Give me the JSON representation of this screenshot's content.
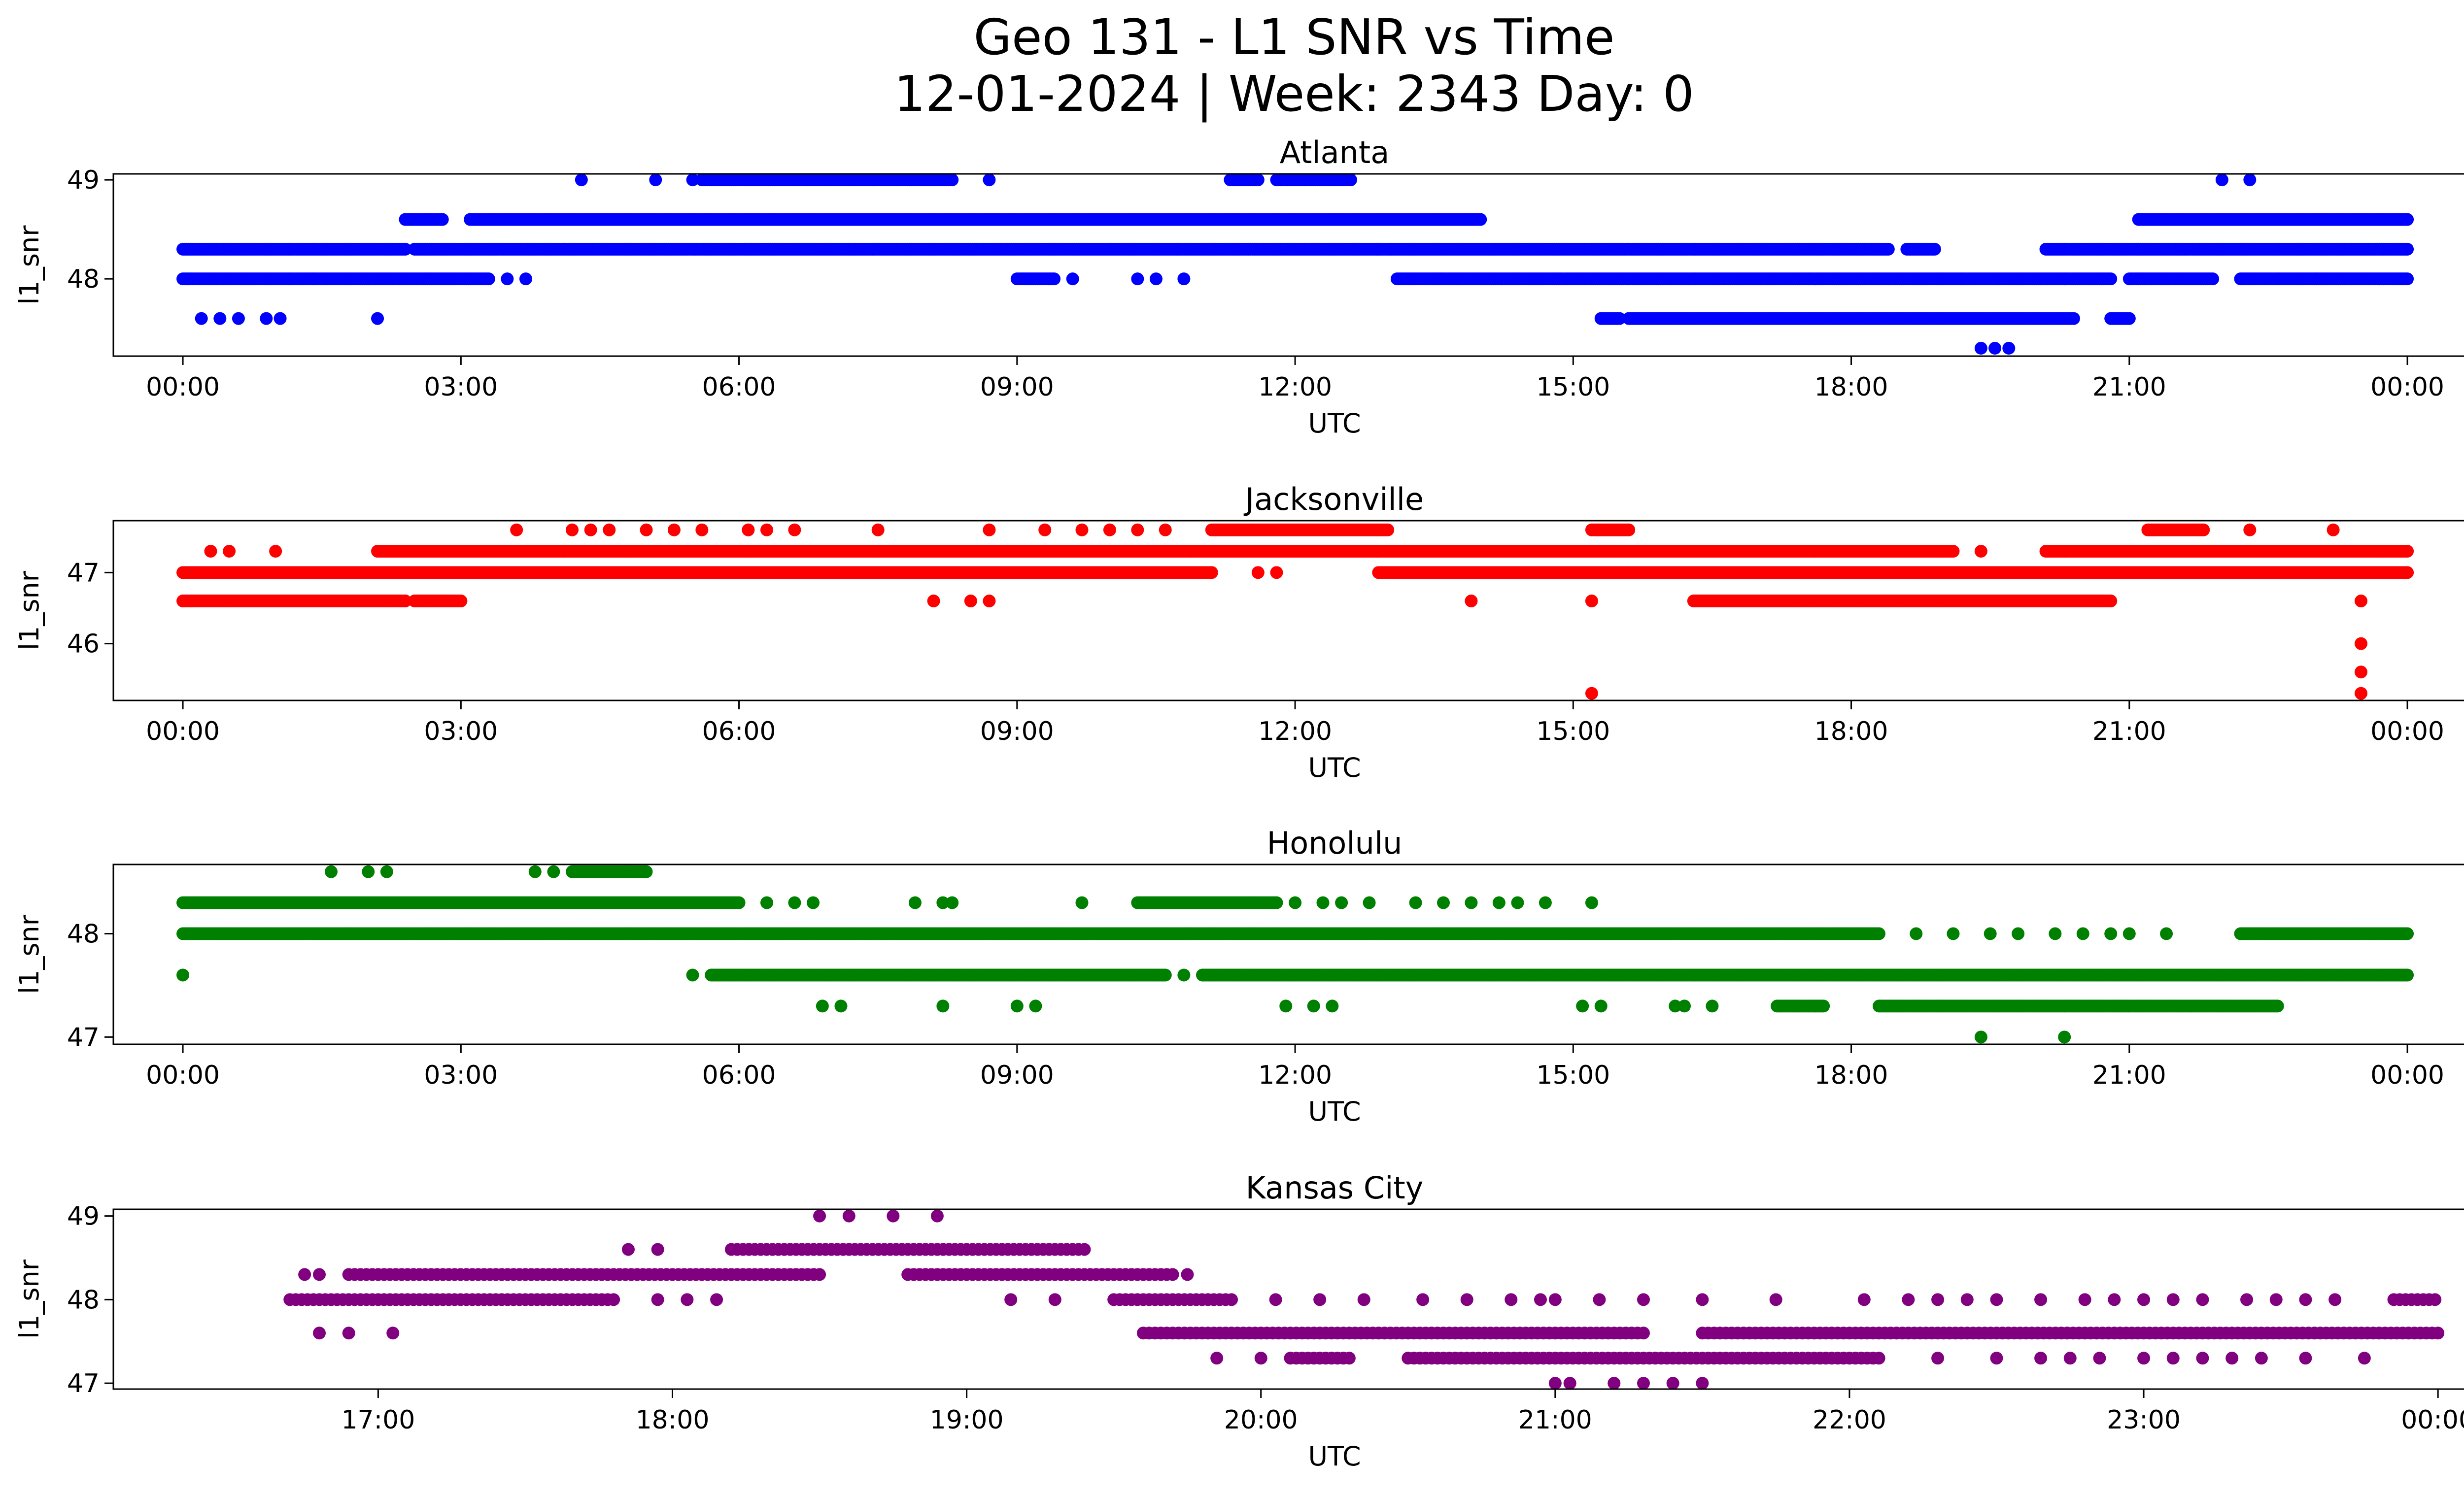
{
  "figure": {
    "title_line1": "Geo 131 - L1 SNR vs Time",
    "title_line2": "12-01-2024 | Week: 2343 Day: 0"
  },
  "chart_data": [
    {
      "type": "scatter",
      "title": "Atlanta",
      "color": "#0000ff",
      "xlabel": "UTC",
      "ylabel": "l1_snr",
      "xlim": [
        -0.75,
        25.6
      ],
      "ylim": [
        47.22,
        49.06
      ],
      "xticks": [
        0,
        3,
        6,
        9,
        12,
        15,
        18,
        21,
        24
      ],
      "xtick_labels": [
        "00:00",
        "03:00",
        "06:00",
        "09:00",
        "12:00",
        "15:00",
        "18:00",
        "21:00",
        "00:00"
      ],
      "yticks": [
        48,
        49
      ],
      "ytick_labels": [
        "48",
        "49"
      ],
      "series": [
        {
          "name": "48.3 band",
          "y": 48.3,
          "x_ranges": [
            [
              0,
              2.4
            ],
            [
              2.5,
              18.4
            ],
            [
              18.6,
              18.9
            ],
            [
              20.1,
              24
            ]
          ]
        },
        {
          "name": "48.0 band",
          "y": 48.0,
          "x_ranges": [
            [
              0,
              3.3
            ],
            [
              9.0,
              9.4
            ],
            [
              13.1,
              20.8
            ],
            [
              21.0,
              21.9
            ],
            [
              22.2,
              24
            ]
          ]
        },
        {
          "name": "48.6 band",
          "y": 48.6,
          "x_ranges": [
            [
              2.4,
              2.8
            ],
            [
              3.1,
              14.0
            ],
            [
              21.1,
              24
            ]
          ]
        },
        {
          "name": "49.0 band",
          "y": 49.0,
          "x_ranges": [
            [
              5.6,
              8.3
            ],
            [
              11.3,
              11.6
            ],
            [
              11.8,
              12.6
            ]
          ]
        },
        {
          "name": "47.6 band",
          "y": 47.6,
          "x_ranges": [
            [
              15.3,
              15.5
            ],
            [
              15.6,
              20.4
            ],
            [
              20.8,
              21.0
            ]
          ]
        }
      ],
      "scatter_points": [
        {
          "x": 0.2,
          "y": 47.6
        },
        {
          "x": 0.4,
          "y": 47.6
        },
        {
          "x": 0.6,
          "y": 47.6
        },
        {
          "x": 0.9,
          "y": 47.6
        },
        {
          "x": 1.05,
          "y": 47.6
        },
        {
          "x": 2.1,
          "y": 47.6
        },
        {
          "x": 3.5,
          "y": 48.0
        },
        {
          "x": 3.7,
          "y": 48.0
        },
        {
          "x": 4.3,
          "y": 49.0
        },
        {
          "x": 5.1,
          "y": 49.0
        },
        {
          "x": 5.5,
          "y": 49.0
        },
        {
          "x": 8.7,
          "y": 49.0
        },
        {
          "x": 9.6,
          "y": 48.0
        },
        {
          "x": 10.3,
          "y": 48.0
        },
        {
          "x": 10.5,
          "y": 48.0
        },
        {
          "x": 10.8,
          "y": 48.0
        },
        {
          "x": 19.4,
          "y": 47.3
        },
        {
          "x": 19.55,
          "y": 47.3
        },
        {
          "x": 19.7,
          "y": 47.3
        },
        {
          "x": 22.0,
          "y": 49.0
        },
        {
          "x": 22.3,
          "y": 49.0
        }
      ]
    },
    {
      "type": "scatter",
      "title": "Jacksonville",
      "color": "#ff0000",
      "xlabel": "UTC",
      "ylabel": "l1_snr",
      "xlim": [
        -0.75,
        25.6
      ],
      "ylim": [
        45.2,
        47.73
      ],
      "xticks": [
        0,
        3,
        6,
        9,
        12,
        15,
        18,
        21,
        24
      ],
      "xtick_labels": [
        "00:00",
        "03:00",
        "06:00",
        "09:00",
        "12:00",
        "15:00",
        "18:00",
        "21:00",
        "00:00"
      ],
      "yticks": [
        46,
        47
      ],
      "ytick_labels": [
        "46",
        "47"
      ],
      "series": [
        {
          "name": "47.0 band",
          "y": 47.0,
          "x_ranges": [
            [
              0,
              11.1
            ],
            [
              12.9,
              24
            ]
          ]
        },
        {
          "name": "46.6 band",
          "y": 46.6,
          "x_ranges": [
            [
              0,
              2.4
            ],
            [
              2.5,
              3.0
            ],
            [
              16.3,
              20.8
            ]
          ]
        },
        {
          "name": "47.3 band",
          "y": 47.3,
          "x_ranges": [
            [
              2.1,
              19.1
            ],
            [
              20.1,
              24
            ]
          ]
        },
        {
          "name": "47.6 band",
          "y": 47.6,
          "x_ranges": [
            [
              11.1,
              13.0
            ],
            [
              15.2,
              15.6
            ],
            [
              21.2,
              21.8
            ]
          ]
        }
      ],
      "scatter_points": [
        {
          "x": 0.3,
          "y": 47.3
        },
        {
          "x": 0.5,
          "y": 47.3
        },
        {
          "x": 1.0,
          "y": 47.3
        },
        {
          "x": 3.6,
          "y": 47.6
        },
        {
          "x": 4.2,
          "y": 47.6
        },
        {
          "x": 4.4,
          "y": 47.6
        },
        {
          "x": 4.6,
          "y": 47.6
        },
        {
          "x": 5.0,
          "y": 47.6
        },
        {
          "x": 5.3,
          "y": 47.6
        },
        {
          "x": 5.6,
          "y": 47.6
        },
        {
          "x": 6.1,
          "y": 47.6
        },
        {
          "x": 6.3,
          "y": 47.6
        },
        {
          "x": 6.6,
          "y": 47.6
        },
        {
          "x": 7.5,
          "y": 47.6
        },
        {
          "x": 8.7,
          "y": 47.6
        },
        {
          "x": 9.3,
          "y": 47.6
        },
        {
          "x": 9.7,
          "y": 47.6
        },
        {
          "x": 10.0,
          "y": 47.6
        },
        {
          "x": 10.3,
          "y": 47.6
        },
        {
          "x": 10.6,
          "y": 47.6
        },
        {
          "x": 8.1,
          "y": 46.6
        },
        {
          "x": 8.5,
          "y": 46.6
        },
        {
          "x": 8.7,
          "y": 46.6
        },
        {
          "x": 11.6,
          "y": 47.0
        },
        {
          "x": 11.8,
          "y": 47.0
        },
        {
          "x": 13.9,
          "y": 46.6
        },
        {
          "x": 15.2,
          "y": 46.6
        },
        {
          "x": 15.2,
          "y": 45.3
        },
        {
          "x": 19.4,
          "y": 47.3
        },
        {
          "x": 22.3,
          "y": 47.6
        },
        {
          "x": 23.2,
          "y": 47.6
        },
        {
          "x": 23.5,
          "y": 46.6
        },
        {
          "x": 23.5,
          "y": 46.0
        },
        {
          "x": 23.5,
          "y": 45.6
        },
        {
          "x": 23.5,
          "y": 45.3
        }
      ]
    },
    {
      "type": "scatter",
      "title": "Honolulu",
      "color": "#008000",
      "xlabel": "UTC",
      "ylabel": "l1_snr",
      "xlim": [
        -0.75,
        25.6
      ],
      "ylim": [
        46.93,
        48.67
      ],
      "xticks": [
        0,
        3,
        6,
        9,
        12,
        15,
        18,
        21,
        24
      ],
      "xtick_labels": [
        "00:00",
        "03:00",
        "06:00",
        "09:00",
        "12:00",
        "15:00",
        "18:00",
        "21:00",
        "00:00"
      ],
      "yticks": [
        47,
        48
      ],
      "ytick_labels": [
        "47",
        "48"
      ],
      "series": [
        {
          "name": "48.3 band",
          "y": 48.3,
          "x_ranges": [
            [
              0,
              6.0
            ],
            [
              10.3,
              11.8
            ]
          ]
        },
        {
          "name": "48.0 band",
          "y": 48.0,
          "x_ranges": [
            [
              0,
              18.3
            ],
            [
              22.2,
              24
            ]
          ]
        },
        {
          "name": "47.6 band",
          "y": 47.6,
          "x_ranges": [
            [
              5.7,
              10.6
            ],
            [
              11.0,
              24
            ]
          ]
        },
        {
          "name": "48.6 band",
          "y": 48.6,
          "x_ranges": [
            [
              4.2,
              5.0
            ]
          ]
        },
        {
          "name": "47.3 band",
          "y": 47.3,
          "x_ranges": [
            [
              17.2,
              17.7
            ],
            [
              18.3,
              22.6
            ]
          ]
        }
      ],
      "scatter_points": [
        {
          "x": 0.0,
          "y": 47.6
        },
        {
          "x": 1.6,
          "y": 48.6
        },
        {
          "x": 2.0,
          "y": 48.6
        },
        {
          "x": 2.2,
          "y": 48.6
        },
        {
          "x": 3.8,
          "y": 48.6
        },
        {
          "x": 4.0,
          "y": 48.6
        },
        {
          "x": 5.5,
          "y": 47.6
        },
        {
          "x": 6.3,
          "y": 48.3
        },
        {
          "x": 6.6,
          "y": 48.3
        },
        {
          "x": 6.8,
          "y": 48.3
        },
        {
          "x": 6.9,
          "y": 47.3
        },
        {
          "x": 7.1,
          "y": 47.3
        },
        {
          "x": 8.2,
          "y": 47.3
        },
        {
          "x": 9.0,
          "y": 47.3
        },
        {
          "x": 9.2,
          "y": 47.3
        },
        {
          "x": 7.9,
          "y": 48.3
        },
        {
          "x": 8.2,
          "y": 48.3
        },
        {
          "x": 8.3,
          "y": 48.3
        },
        {
          "x": 9.7,
          "y": 48.3
        },
        {
          "x": 10.8,
          "y": 47.6
        },
        {
          "x": 12.0,
          "y": 48.3
        },
        {
          "x": 12.3,
          "y": 48.3
        },
        {
          "x": 12.5,
          "y": 48.3
        },
        {
          "x": 12.8,
          "y": 48.3
        },
        {
          "x": 13.3,
          "y": 48.3
        },
        {
          "x": 13.6,
          "y": 48.3
        },
        {
          "x": 13.9,
          "y": 48.3
        },
        {
          "x": 14.2,
          "y": 48.3
        },
        {
          "x": 14.4,
          "y": 48.3
        },
        {
          "x": 14.7,
          "y": 48.3
        },
        {
          "x": 15.2,
          "y": 48.3
        },
        {
          "x": 11.9,
          "y": 47.3
        },
        {
          "x": 12.2,
          "y": 47.3
        },
        {
          "x": 12.4,
          "y": 47.3
        },
        {
          "x": 15.1,
          "y": 47.3
        },
        {
          "x": 15.3,
          "y": 47.3
        },
        {
          "x": 16.1,
          "y": 47.3
        },
        {
          "x": 16.2,
          "y": 47.3
        },
        {
          "x": 16.5,
          "y": 47.3
        },
        {
          "x": 18.7,
          "y": 48.0
        },
        {
          "x": 19.1,
          "y": 48.0
        },
        {
          "x": 19.5,
          "y": 48.0
        },
        {
          "x": 19.8,
          "y": 48.0
        },
        {
          "x": 20.2,
          "y": 48.0
        },
        {
          "x": 20.5,
          "y": 48.0
        },
        {
          "x": 20.8,
          "y": 48.0
        },
        {
          "x": 21.0,
          "y": 48.0
        },
        {
          "x": 21.4,
          "y": 48.0
        },
        {
          "x": 19.4,
          "y": 47.0
        },
        {
          "x": 20.3,
          "y": 47.0
        }
      ]
    },
    {
      "type": "scatter",
      "title": "Kansas City",
      "color": "#800080",
      "xlabel": "UTC",
      "ylabel": "l1_snr",
      "xlim": [
        16.1,
        24.4
      ],
      "ylim": [
        46.93,
        49.08
      ],
      "xticks": [
        17,
        18,
        19,
        20,
        21,
        22,
        23,
        24
      ],
      "xtick_labels": [
        "17:00",
        "18:00",
        "19:00",
        "20:00",
        "21:00",
        "22:00",
        "23:00",
        "00:00"
      ],
      "yticks": [
        47,
        48,
        49
      ],
      "ytick_labels": [
        "47",
        "48",
        "49"
      ],
      "series": [
        {
          "name": "48.0 band",
          "y": 48.0,
          "x_ranges": [
            [
              16.7,
              17.8
            ],
            [
              19.5,
              19.9
            ],
            [
              23.85,
              24
            ]
          ]
        },
        {
          "name": "48.3 band",
          "y": 48.3,
          "x_ranges": [
            [
              16.9,
              18.5
            ],
            [
              18.8,
              19.7
            ]
          ]
        },
        {
          "name": "48.6 band",
          "y": 48.6,
          "x_ranges": [
            [
              18.2,
              19.4
            ]
          ]
        },
        {
          "name": "47.6 band",
          "y": 47.6,
          "x_ranges": [
            [
              19.6,
              21.3
            ],
            [
              21.5,
              24
            ]
          ]
        },
        {
          "name": "47.3 band",
          "y": 47.3,
          "x_ranges": [
            [
              20.1,
              20.3
            ],
            [
              20.5,
              22.1
            ]
          ]
        }
      ],
      "scatter_points": [
        {
          "x": 16.75,
          "y": 48.3
        },
        {
          "x": 16.8,
          "y": 48.3
        },
        {
          "x": 16.8,
          "y": 47.6
        },
        {
          "x": 16.9,
          "y": 47.6
        },
        {
          "x": 17.05,
          "y": 47.6
        },
        {
          "x": 17.85,
          "y": 48.6
        },
        {
          "x": 17.95,
          "y": 48.6
        },
        {
          "x": 17.95,
          "y": 48.0
        },
        {
          "x": 18.05,
          "y": 48.0
        },
        {
          "x": 18.15,
          "y": 48.0
        },
        {
          "x": 18.5,
          "y": 49.0
        },
        {
          "x": 18.6,
          "y": 49.0
        },
        {
          "x": 18.75,
          "y": 49.0
        },
        {
          "x": 18.9,
          "y": 49.0
        },
        {
          "x": 19.15,
          "y": 48.0
        },
        {
          "x": 19.3,
          "y": 48.0
        },
        {
          "x": 19.75,
          "y": 48.3
        },
        {
          "x": 19.85,
          "y": 47.3
        },
        {
          "x": 20.0,
          "y": 47.3
        },
        {
          "x": 20.05,
          "y": 48.0
        },
        {
          "x": 20.2,
          "y": 48.0
        },
        {
          "x": 20.35,
          "y": 48.0
        },
        {
          "x": 20.55,
          "y": 48.0
        },
        {
          "x": 20.7,
          "y": 48.0
        },
        {
          "x": 20.85,
          "y": 48.0
        },
        {
          "x": 20.95,
          "y": 48.0
        },
        {
          "x": 21.0,
          "y": 48.0
        },
        {
          "x": 21.15,
          "y": 48.0
        },
        {
          "x": 21.3,
          "y": 48.0
        },
        {
          "x": 21.5,
          "y": 48.0
        },
        {
          "x": 21.75,
          "y": 48.0
        },
        {
          "x": 21.0,
          "y": 47.0
        },
        {
          "x": 21.05,
          "y": 47.0
        },
        {
          "x": 21.2,
          "y": 47.0
        },
        {
          "x": 21.3,
          "y": 47.0
        },
        {
          "x": 21.4,
          "y": 47.0
        },
        {
          "x": 21.5,
          "y": 47.0
        },
        {
          "x": 22.05,
          "y": 48.0
        },
        {
          "x": 22.2,
          "y": 48.0
        },
        {
          "x": 22.3,
          "y": 48.0
        },
        {
          "x": 22.4,
          "y": 48.0
        },
        {
          "x": 22.5,
          "y": 48.0
        },
        {
          "x": 22.65,
          "y": 48.0
        },
        {
          "x": 22.8,
          "y": 48.0
        },
        {
          "x": 22.9,
          "y": 48.0
        },
        {
          "x": 23.0,
          "y": 48.0
        },
        {
          "x": 23.1,
          "y": 48.0
        },
        {
          "x": 23.2,
          "y": 48.0
        },
        {
          "x": 23.35,
          "y": 48.0
        },
        {
          "x": 23.45,
          "y": 48.0
        },
        {
          "x": 23.55,
          "y": 48.0
        },
        {
          "x": 23.65,
          "y": 48.0
        },
        {
          "x": 22.3,
          "y": 47.3
        },
        {
          "x": 22.5,
          "y": 47.3
        },
        {
          "x": 22.65,
          "y": 47.3
        },
        {
          "x": 22.75,
          "y": 47.3
        },
        {
          "x": 22.85,
          "y": 47.3
        },
        {
          "x": 23.0,
          "y": 47.3
        },
        {
          "x": 23.1,
          "y": 47.3
        },
        {
          "x": 23.2,
          "y": 47.3
        },
        {
          "x": 23.3,
          "y": 47.3
        },
        {
          "x": 23.4,
          "y": 47.3
        },
        {
          "x": 23.55,
          "y": 47.3
        },
        {
          "x": 23.75,
          "y": 47.3
        }
      ]
    }
  ]
}
